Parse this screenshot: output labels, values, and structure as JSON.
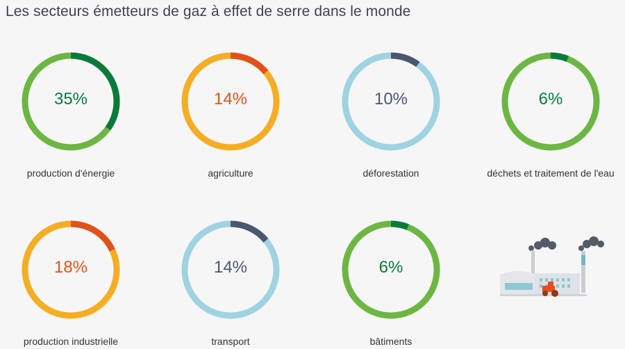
{
  "title": "Les secteurs émetteurs de gaz à effet de serre dans le monde",
  "colors": {
    "green_track": "#6db643",
    "green_dark": "#0a7a3a",
    "orange_track": "#f5ad24",
    "orange_dark": "#e0521a",
    "blue_track": "#9fd3e1",
    "blue_dark": "#4b5670",
    "background": "#f6f6f6"
  },
  "chart_data": {
    "type": "donut",
    "title": "Les secteurs émetteurs de gaz à effet de serre dans le monde",
    "unit": "%",
    "items": [
      {
        "label": "production d'énergie",
        "value": 35,
        "display": "35%",
        "theme": "green"
      },
      {
        "label": "agriculture",
        "value": 14,
        "display": "14%",
        "theme": "orange"
      },
      {
        "label": "déforestation",
        "value": 10,
        "display": "10%",
        "theme": "blue"
      },
      {
        "label": "déchets et traitement de l'eau",
        "value": 6,
        "display": "6%",
        "theme": "green"
      },
      {
        "label": "production industrielle",
        "value": 18,
        "display": "18%",
        "theme": "orange"
      },
      {
        "label": "transport",
        "value": 14,
        "display": "14%",
        "theme": "blue"
      },
      {
        "label": "bâtiments",
        "value": 6,
        "display": "6%",
        "theme": "green"
      }
    ]
  },
  "illustration": {
    "icon": "factory-icon"
  }
}
